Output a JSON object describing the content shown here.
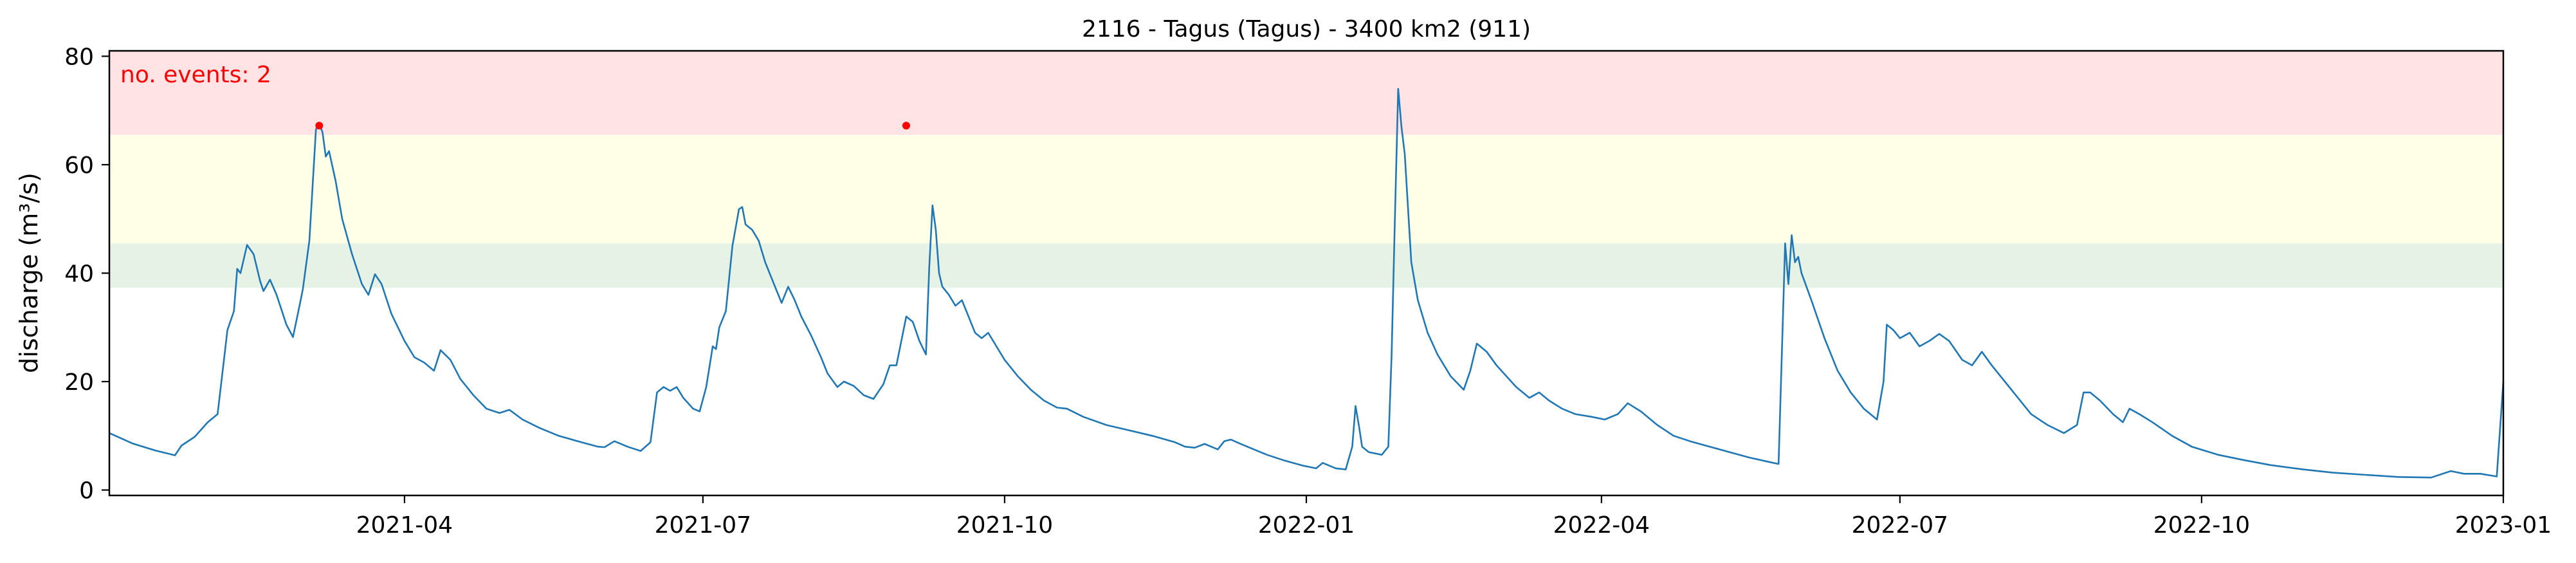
{
  "chart_data": {
    "type": "line",
    "title": "2116 - Tagus (Tagus) - 3400 km2 (911)",
    "xlabel": "",
    "ylabel": "discharge (m³/s)",
    "xlim": [
      "2021-01-01",
      "2023-01-01"
    ],
    "ylim": [
      -1,
      81
    ],
    "yticks": [
      0,
      20,
      40,
      60,
      80
    ],
    "xticks": [
      {
        "date": "2021-04-01",
        "label": "2021-04"
      },
      {
        "date": "2021-07-01",
        "label": "2021-07"
      },
      {
        "date": "2021-10-01",
        "label": "2021-10"
      },
      {
        "date": "2022-01-01",
        "label": "2022-01"
      },
      {
        "date": "2022-04-01",
        "label": "2022-04"
      },
      {
        "date": "2022-07-01",
        "label": "2022-07"
      },
      {
        "date": "2022-10-01",
        "label": "2022-10"
      },
      {
        "date": "2023-01-01",
        "label": "2023-01"
      }
    ],
    "grid": false,
    "bands": [
      {
        "ymin": 37.3,
        "ymax": 45.5,
        "color": "#e6f2e6"
      },
      {
        "ymin": 65.5,
        "ymax": 81,
        "color": "#ffe3e5"
      },
      {
        "ymin": 45.5,
        "ymax": 65.5,
        "color": "#fffee6"
      }
    ],
    "annotation": {
      "text": "no. events: 2",
      "color": "#ff0000"
    },
    "series": [
      {
        "color": "#1f77b4",
        "points": [
          [
            "2021-01-01",
            10.5
          ],
          [
            "2021-01-08",
            8.6
          ],
          [
            "2021-01-15",
            7.3
          ],
          [
            "2021-01-21",
            6.4
          ],
          [
            "2021-01-23",
            8.2
          ],
          [
            "2021-01-27",
            9.8
          ],
          [
            "2021-01-31",
            12.5
          ],
          [
            "2021-02-03",
            14.0
          ],
          [
            "2021-02-06",
            29.5
          ],
          [
            "2021-02-08",
            33.0
          ],
          [
            "2021-02-09",
            40.8
          ],
          [
            "2021-02-10",
            40.0
          ],
          [
            "2021-02-12",
            45.2
          ],
          [
            "2021-02-14",
            43.5
          ],
          [
            "2021-02-16",
            38.5
          ],
          [
            "2021-02-17",
            36.7
          ],
          [
            "2021-02-19",
            38.8
          ],
          [
            "2021-02-21",
            36.0
          ],
          [
            "2021-02-24",
            30.5
          ],
          [
            "2021-02-26",
            28.2
          ],
          [
            "2021-02-28",
            34.0
          ],
          [
            "2021-03-01",
            37.0
          ],
          [
            "2021-03-03",
            46.0
          ],
          [
            "2021-03-05",
            66.5
          ],
          [
            "2021-03-06",
            67.5
          ],
          [
            "2021-03-07",
            66.0
          ],
          [
            "2021-03-08",
            61.5
          ],
          [
            "2021-03-09",
            62.5
          ],
          [
            "2021-03-11",
            57.0
          ],
          [
            "2021-03-13",
            50.0
          ],
          [
            "2021-03-16",
            43.5
          ],
          [
            "2021-03-19",
            38.0
          ],
          [
            "2021-03-21",
            36.0
          ],
          [
            "2021-03-23",
            39.8
          ],
          [
            "2021-03-25",
            38.0
          ],
          [
            "2021-03-28",
            32.5
          ],
          [
            "2021-04-01",
            27.5
          ],
          [
            "2021-04-04",
            24.5
          ],
          [
            "2021-04-07",
            23.5
          ],
          [
            "2021-04-10",
            22.0
          ],
          [
            "2021-04-12",
            25.8
          ],
          [
            "2021-04-15",
            24.0
          ],
          [
            "2021-04-18",
            20.5
          ],
          [
            "2021-04-22",
            17.5
          ],
          [
            "2021-04-26",
            15.0
          ],
          [
            "2021-04-30",
            14.2
          ],
          [
            "2021-05-03",
            14.8
          ],
          [
            "2021-05-07",
            13.0
          ],
          [
            "2021-05-12",
            11.5
          ],
          [
            "2021-05-18",
            10.0
          ],
          [
            "2021-05-25",
            8.8
          ],
          [
            "2021-05-30",
            8.0
          ],
          [
            "2021-06-01",
            7.9
          ],
          [
            "2021-06-04",
            9.0
          ],
          [
            "2021-06-08",
            8.0
          ],
          [
            "2021-06-12",
            7.2
          ],
          [
            "2021-06-15",
            8.8
          ],
          [
            "2021-06-17",
            18.0
          ],
          [
            "2021-06-19",
            19.0
          ],
          [
            "2021-06-21",
            18.3
          ],
          [
            "2021-06-23",
            19.0
          ],
          [
            "2021-06-25",
            17.0
          ],
          [
            "2021-06-28",
            15.0
          ],
          [
            "2021-06-30",
            14.5
          ],
          [
            "2021-07-02",
            19.0
          ],
          [
            "2021-07-04",
            26.5
          ],
          [
            "2021-07-05",
            26.0
          ],
          [
            "2021-07-06",
            30.0
          ],
          [
            "2021-07-08",
            33.0
          ],
          [
            "2021-07-10",
            45.0
          ],
          [
            "2021-07-12",
            51.8
          ],
          [
            "2021-07-13",
            52.2
          ],
          [
            "2021-07-14",
            49.0
          ],
          [
            "2021-07-16",
            48.0
          ],
          [
            "2021-07-18",
            46.0
          ],
          [
            "2021-07-20",
            42.0
          ],
          [
            "2021-07-23",
            37.5
          ],
          [
            "2021-07-25",
            34.5
          ],
          [
            "2021-07-27",
            37.5
          ],
          [
            "2021-07-29",
            35.0
          ],
          [
            "2021-07-31",
            32.0
          ],
          [
            "2021-08-03",
            28.5
          ],
          [
            "2021-08-06",
            24.5
          ],
          [
            "2021-08-08",
            21.5
          ],
          [
            "2021-08-11",
            19.0
          ],
          [
            "2021-08-13",
            20.0
          ],
          [
            "2021-08-16",
            19.2
          ],
          [
            "2021-08-19",
            17.5
          ],
          [
            "2021-08-22",
            16.8
          ],
          [
            "2021-08-25",
            19.5
          ],
          [
            "2021-08-27",
            23.0
          ],
          [
            "2021-08-29",
            23.0
          ],
          [
            "2021-09-01",
            32.0
          ],
          [
            "2021-09-03",
            31.0
          ],
          [
            "2021-09-05",
            27.5
          ],
          [
            "2021-09-07",
            25.0
          ],
          [
            "2021-09-08",
            41.0
          ],
          [
            "2021-09-09",
            52.5
          ],
          [
            "2021-09-10",
            48.0
          ],
          [
            "2021-09-11",
            40.0
          ],
          [
            "2021-09-12",
            37.5
          ],
          [
            "2021-09-14",
            36.0
          ],
          [
            "2021-09-16",
            34.0
          ],
          [
            "2021-09-18",
            35.0
          ],
          [
            "2021-09-20",
            32.0
          ],
          [
            "2021-09-22",
            29.0
          ],
          [
            "2021-09-24",
            28.0
          ],
          [
            "2021-09-26",
            29.0
          ],
          [
            "2021-09-28",
            27.0
          ],
          [
            "2021-10-01",
            24.0
          ],
          [
            "2021-10-05",
            21.0
          ],
          [
            "2021-10-09",
            18.5
          ],
          [
            "2021-10-13",
            16.5
          ],
          [
            "2021-10-17",
            15.2
          ],
          [
            "2021-10-20",
            15.0
          ],
          [
            "2021-10-25",
            13.5
          ],
          [
            "2021-11-01",
            12.0
          ],
          [
            "2021-11-08",
            11.0
          ],
          [
            "2021-11-15",
            10.0
          ],
          [
            "2021-11-22",
            8.8
          ],
          [
            "2021-11-25",
            8.0
          ],
          [
            "2021-11-28",
            7.8
          ],
          [
            "2021-12-01",
            8.5
          ],
          [
            "2021-12-03",
            8.0
          ],
          [
            "2021-12-05",
            7.5
          ],
          [
            "2021-12-07",
            9.0
          ],
          [
            "2021-12-09",
            9.3
          ],
          [
            "2021-12-12",
            8.5
          ],
          [
            "2021-12-16",
            7.5
          ],
          [
            "2021-12-20",
            6.5
          ],
          [
            "2021-12-25",
            5.5
          ],
          [
            "2021-12-31",
            4.5
          ],
          [
            "2022-01-04",
            4.0
          ],
          [
            "2022-01-06",
            5.0
          ],
          [
            "2022-01-08",
            4.5
          ],
          [
            "2022-01-10",
            4.0
          ],
          [
            "2022-01-13",
            3.8
          ],
          [
            "2022-01-15",
            8.0
          ],
          [
            "2022-01-16",
            15.5
          ],
          [
            "2022-01-17",
            12.0
          ],
          [
            "2022-01-18",
            8.0
          ],
          [
            "2022-01-20",
            7.0
          ],
          [
            "2022-01-24",
            6.5
          ],
          [
            "2022-01-26",
            8.0
          ],
          [
            "2022-01-27",
            25.0
          ],
          [
            "2022-01-28",
            50.0
          ],
          [
            "2022-01-29",
            74.0
          ],
          [
            "2022-01-30",
            67.0
          ],
          [
            "2022-01-31",
            62.0
          ],
          [
            "2022-02-01",
            52.0
          ],
          [
            "2022-02-02",
            42.0
          ],
          [
            "2022-02-04",
            35.0
          ],
          [
            "2022-02-07",
            29.0
          ],
          [
            "2022-02-10",
            25.0
          ],
          [
            "2022-02-14",
            21.0
          ],
          [
            "2022-02-18",
            18.5
          ],
          [
            "2022-02-20",
            22.0
          ],
          [
            "2022-02-22",
            27.0
          ],
          [
            "2022-02-25",
            25.5
          ],
          [
            "2022-02-28",
            23.0
          ],
          [
            "2022-03-03",
            21.0
          ],
          [
            "2022-03-06",
            19.0
          ],
          [
            "2022-03-10",
            17.0
          ],
          [
            "2022-03-13",
            18.0
          ],
          [
            "2022-03-16",
            16.5
          ],
          [
            "2022-03-20",
            15.0
          ],
          [
            "2022-03-24",
            14.0
          ],
          [
            "2022-03-29",
            13.5
          ],
          [
            "2022-04-02",
            13.0
          ],
          [
            "2022-04-06",
            14.0
          ],
          [
            "2022-04-09",
            16.0
          ],
          [
            "2022-04-13",
            14.5
          ],
          [
            "2022-04-18",
            12.0
          ],
          [
            "2022-04-23",
            10.0
          ],
          [
            "2022-04-28",
            9.0
          ],
          [
            "2022-05-04",
            8.0
          ],
          [
            "2022-05-10",
            7.0
          ],
          [
            "2022-05-16",
            6.0
          ],
          [
            "2022-05-22",
            5.2
          ],
          [
            "2022-05-25",
            4.8
          ],
          [
            "2022-05-27",
            45.5
          ],
          [
            "2022-05-28",
            38.0
          ],
          [
            "2022-05-29",
            47.0
          ],
          [
            "2022-05-30",
            42.0
          ],
          [
            "2022-05-31",
            43.0
          ],
          [
            "2022-06-01",
            40.0
          ],
          [
            "2022-06-04",
            35.0
          ],
          [
            "2022-06-08",
            28.0
          ],
          [
            "2022-06-12",
            22.0
          ],
          [
            "2022-06-16",
            18.0
          ],
          [
            "2022-06-20",
            15.0
          ],
          [
            "2022-06-24",
            13.0
          ],
          [
            "2022-06-26",
            20.0
          ],
          [
            "2022-06-27",
            30.5
          ],
          [
            "2022-06-29",
            29.5
          ],
          [
            "2022-07-01",
            28.0
          ],
          [
            "2022-07-04",
            29.0
          ],
          [
            "2022-07-07",
            26.5
          ],
          [
            "2022-07-10",
            27.5
          ],
          [
            "2022-07-13",
            28.8
          ],
          [
            "2022-07-16",
            27.5
          ],
          [
            "2022-07-20",
            24.0
          ],
          [
            "2022-07-23",
            23.0
          ],
          [
            "2022-07-26",
            25.5
          ],
          [
            "2022-07-29",
            23.0
          ],
          [
            "2022-08-02",
            20.0
          ],
          [
            "2022-08-06",
            17.0
          ],
          [
            "2022-08-10",
            14.0
          ],
          [
            "2022-08-15",
            12.0
          ],
          [
            "2022-08-20",
            10.5
          ],
          [
            "2022-08-24",
            12.0
          ],
          [
            "2022-08-26",
            18.0
          ],
          [
            "2022-08-28",
            18.0
          ],
          [
            "2022-08-31",
            16.5
          ],
          [
            "2022-09-04",
            14.0
          ],
          [
            "2022-09-07",
            12.5
          ],
          [
            "2022-09-09",
            15.0
          ],
          [
            "2022-09-12",
            14.0
          ],
          [
            "2022-09-16",
            12.5
          ],
          [
            "2022-09-22",
            10.0
          ],
          [
            "2022-09-28",
            8.0
          ],
          [
            "2022-10-06",
            6.5
          ],
          [
            "2022-10-14",
            5.5
          ],
          [
            "2022-10-22",
            4.6
          ],
          [
            "2022-11-01",
            3.8
          ],
          [
            "2022-11-10",
            3.2
          ],
          [
            "2022-11-20",
            2.8
          ],
          [
            "2022-11-30",
            2.4
          ],
          [
            "2022-12-10",
            2.3
          ],
          [
            "2022-12-16",
            3.5
          ],
          [
            "2022-12-20",
            3.0
          ],
          [
            "2022-12-25",
            3.0
          ],
          [
            "2022-12-30",
            2.5
          ],
          [
            "2023-01-01",
            20.0
          ]
        ]
      }
    ],
    "events": [
      {
        "x": "2021-03-06",
        "y": 67.2
      },
      {
        "x": "2021-09-01",
        "y": 67.2
      }
    ]
  }
}
